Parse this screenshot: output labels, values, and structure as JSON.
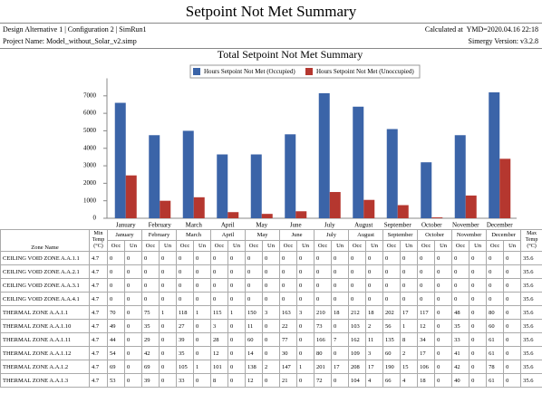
{
  "header": {
    "title": "Setpoint Not Met Summary",
    "run": "Design Alternative 1 | Configuration 2 | SimRun1",
    "calculated": "Calculated at  YMD=2020.04.16 22:18",
    "project": "Project Name: Model_without_Solar_v2.simp",
    "version": "Simergy Version: v3.2.8"
  },
  "chart_data": {
    "type": "bar",
    "title": "Total Setpoint Not Met Summary",
    "categories": [
      "January",
      "February",
      "March",
      "April",
      "May",
      "June",
      "July",
      "August",
      "September",
      "October",
      "November",
      "December"
    ],
    "series": [
      {
        "name": "Hours Setpoint Not Met (Occupied)",
        "color": "#3b64a8",
        "values": [
          6600,
          4750,
          5000,
          3650,
          3650,
          4800,
          7150,
          6380,
          5100,
          3200,
          4750,
          7200
        ]
      },
      {
        "name": "Hours Setpoint Not Met (Unoccupied)",
        "color": "#b5372f",
        "values": [
          2450,
          1000,
          1200,
          350,
          250,
          400,
          1500,
          1050,
          750,
          50,
          1300,
          3400
        ]
      }
    ],
    "ylim": [
      0,
      8000
    ],
    "yticks": [
      0,
      1000,
      2000,
      3000,
      4000,
      5000,
      6000,
      7000
    ],
    "grid": false,
    "legend": "top"
  },
  "table": {
    "zone_header": "Zone Name",
    "min_header": "Min Temp (°C)",
    "max_header": "Max Temp (°C)",
    "sub": [
      "Occ",
      "Un"
    ],
    "rows": [
      [
        "CEILING VOID ZONE A.A.1.1",
        4.7,
        0,
        0,
        0,
        0,
        0,
        0,
        0,
        0,
        0,
        0,
        0,
        0,
        0,
        0,
        0,
        0,
        0,
        0,
        0,
        0,
        0,
        0,
        0,
        0,
        35.6
      ],
      [
        "CEILING VOID ZONE A.A.2.1",
        4.7,
        0,
        0,
        0,
        0,
        0,
        0,
        0,
        0,
        0,
        0,
        0,
        0,
        0,
        0,
        0,
        0,
        0,
        0,
        0,
        0,
        0,
        0,
        0,
        0,
        35.6
      ],
      [
        "CEILING VOID ZONE A.A.3.1",
        4.7,
        0,
        0,
        0,
        0,
        0,
        0,
        0,
        0,
        0,
        0,
        0,
        0,
        0,
        0,
        0,
        0,
        0,
        0,
        0,
        0,
        0,
        0,
        0,
        0,
        35.6
      ],
      [
        "CEILING VOID ZONE A.A.4.1",
        4.7,
        0,
        0,
        0,
        0,
        0,
        0,
        0,
        0,
        0,
        0,
        0,
        0,
        0,
        0,
        0,
        0,
        0,
        0,
        0,
        0,
        0,
        0,
        0,
        0,
        35.6
      ],
      [
        "THERMAL ZONE A.A.1.1",
        4.7,
        70,
        0,
        75,
        1,
        118,
        1,
        115,
        1,
        150,
        3,
        163,
        3,
        210,
        18,
        212,
        18,
        202,
        17,
        117,
        0,
        48,
        0,
        80,
        0,
        35.6
      ],
      [
        "THERMAL ZONE A.A.1.10",
        4.7,
        49,
        0,
        35,
        0,
        27,
        0,
        3,
        0,
        11,
        0,
        22,
        0,
        73,
        0,
        103,
        2,
        56,
        1,
        12,
        0,
        35,
        0,
        60,
        0,
        35.6
      ],
      [
        "THERMAL ZONE A.A.1.11",
        4.7,
        44,
        0,
        29,
        0,
        39,
        0,
        28,
        0,
        60,
        0,
        77,
        0,
        166,
        7,
        162,
        11,
        135,
        8,
        34,
        0,
        33,
        0,
        61,
        0,
        35.6
      ],
      [
        "THERMAL ZONE A.A.1.12",
        4.7,
        54,
        0,
        42,
        0,
        35,
        0,
        12,
        0,
        14,
        0,
        30,
        0,
        80,
        0,
        109,
        3,
        60,
        2,
        17,
        0,
        41,
        0,
        61,
        0,
        35.6
      ],
      [
        "THERMAL ZONE A.A.1.2",
        4.7,
        69,
        0,
        69,
        0,
        105,
        1,
        101,
        0,
        138,
        2,
        147,
        1,
        201,
        17,
        208,
        17,
        190,
        15,
        106,
        0,
        42,
        0,
        78,
        0,
        35.6
      ],
      [
        "THERMAL ZONE A.A.1.3",
        4.7,
        53,
        0,
        39,
        0,
        33,
        0,
        8,
        0,
        12,
        0,
        21,
        0,
        72,
        0,
        104,
        4,
        66,
        4,
        18,
        0,
        40,
        0,
        61,
        0,
        35.6
      ]
    ]
  }
}
